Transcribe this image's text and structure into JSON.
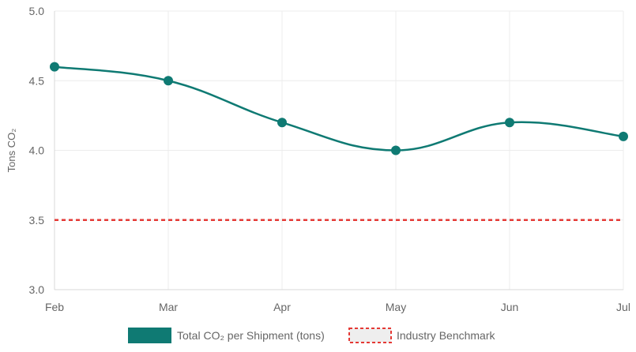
{
  "chart_data": {
    "type": "line",
    "categories": [
      "Feb",
      "Mar",
      "Apr",
      "May",
      "Jun",
      "Jul"
    ],
    "series": [
      {
        "name": "Total CO₂ per Shipment (tons)",
        "values": [
          4.6,
          4.5,
          4.2,
          4.0,
          4.2,
          4.1
        ],
        "color": "#0f7a73",
        "style": "solid-smooth-with-markers"
      },
      {
        "name": "Industry Benchmark",
        "values": [
          3.5,
          3.5,
          3.5,
          3.5,
          3.5,
          3.5
        ],
        "color": "#e53935",
        "style": "dotted"
      }
    ],
    "ylabel": "Tons CO₂",
    "xlabel": "",
    "ylim": [
      3.0,
      5.0
    ],
    "yticks": [
      "3.0",
      "3.5",
      "4.0",
      "4.5",
      "5.0"
    ],
    "grid": true,
    "legend_position": "bottom"
  }
}
